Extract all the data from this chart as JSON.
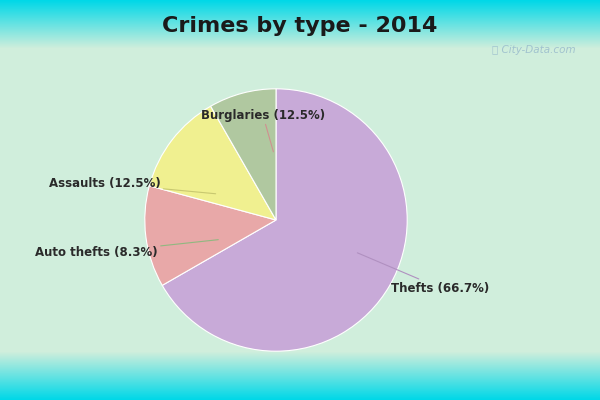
{
  "title": "Crimes by type - 2014",
  "slices": [
    {
      "label": "Thefts (66.7%)",
      "value": 66.7,
      "color": "#c8aad8"
    },
    {
      "label": "Burglaries (12.5%)",
      "value": 12.5,
      "color": "#e8a8a8"
    },
    {
      "label": "Assaults (12.5%)",
      "value": 12.5,
      "color": "#f0f090"
    },
    {
      "label": "Auto thefts (8.3%)",
      "value": 8.3,
      "color": "#b0c8a0"
    }
  ],
  "background_top": "#00d8e8",
  "background_mid_top": "#c8e8e0",
  "background_mid": "#d0eed8",
  "background_bottom": "#00d8e8",
  "title_fontsize": 16,
  "label_fontsize": 8.5,
  "watermark": "ⓘ City-Data.com",
  "startangle": 90
}
